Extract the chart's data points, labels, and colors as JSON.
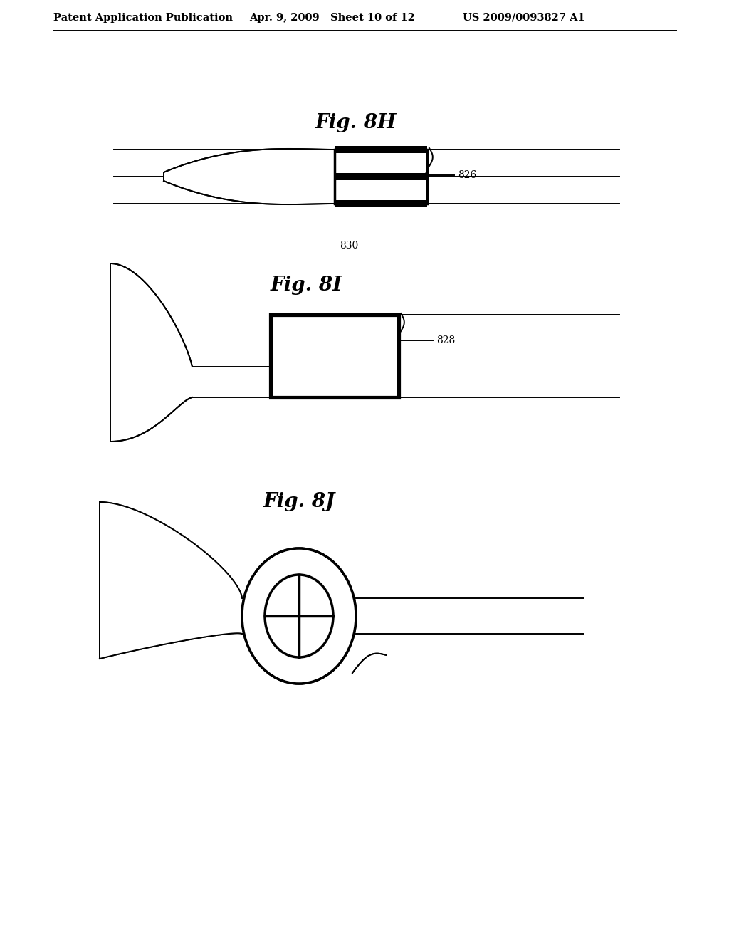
{
  "bg_color": "#ffffff",
  "header_left": "Patent Application Publication",
  "header_mid": "Apr. 9, 2009   Sheet 10 of 12",
  "header_right": "US 2009/0093827 A1",
  "label_826": "826",
  "label_828": "828",
  "label_830": "830",
  "fig8H_label": "Fig. 8H",
  "fig8I_label": "Fig. 8I",
  "fig8J_label": "Fig. 8J",
  "line_color": "#000000",
  "lw": 1.4,
  "thick_lw": 2.5,
  "fig_label_fontsize": 20,
  "header_fontsize": 10.5
}
